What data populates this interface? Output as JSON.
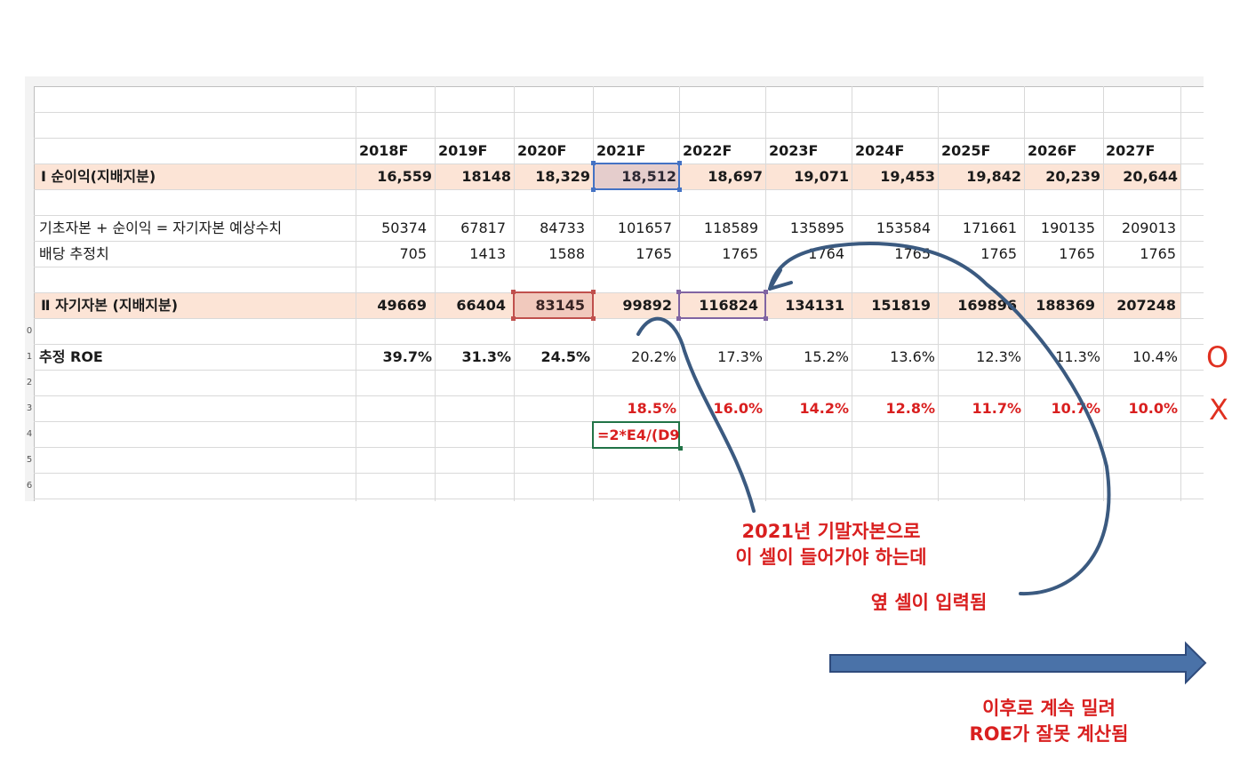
{
  "sheet": {
    "years": [
      "2018F",
      "2019F",
      "2020F",
      "2021F",
      "2022F",
      "2023F",
      "2024F",
      "2025F",
      "2026F",
      "2027F"
    ],
    "rows": {
      "net_income": {
        "label": "Ⅰ 순이익(지배지분)",
        "values": [
          "16,559",
          "18148",
          "18,329",
          "18,512",
          "18,697",
          "19,071",
          "19,453",
          "19,842",
          "20,239",
          "20,644"
        ]
      },
      "equity_estimate": {
        "label": "기초자본 + 순이익 = 자기자본 예상수치",
        "values": [
          "50374",
          "67817",
          "84733",
          "101657",
          "118589",
          "135895",
          "153584",
          "171661",
          "190135",
          "209013"
        ]
      },
      "dividend": {
        "label": "배당 추정치",
        "values": [
          "705",
          "1413",
          "1588",
          "1765",
          "1765",
          "1764",
          "1765",
          "1765",
          "1765",
          "1765"
        ]
      },
      "equity": {
        "label": "Ⅱ 자기자본 (지배지분)",
        "values": [
          "49669",
          "66404",
          "83145",
          "99892",
          "116824",
          "134131",
          "151819",
          "169896",
          "188369",
          "207248"
        ]
      },
      "roe": {
        "label": "추정 ROE",
        "values": [
          "39.7%",
          "31.3%",
          "24.5%",
          "20.2%",
          "17.3%",
          "15.2%",
          "13.6%",
          "12.3%",
          "11.3%",
          "10.4%"
        ]
      },
      "roe_wrong": {
        "values": [
          "",
          "",
          "",
          "18.5%",
          "16.0%",
          "14.2%",
          "12.8%",
          "11.7%",
          "10.7%",
          "10.0%"
        ]
      },
      "formula": "=2*E4/(D9"
    },
    "row_numbers": [
      "0",
      "1",
      "2",
      "3",
      "4",
      "5",
      "6"
    ]
  },
  "annotations": {
    "note1_line1": "2021년 기말자본으로",
    "note1_line2": "이 셀이 들어가야 하는데",
    "note2": "옆 셀이 입력됨",
    "note3_line1": "이후로 계속 밀려",
    "note3_line2": "ROE가 잘못 계산됨",
    "mark_o": "O",
    "mark_x": "X"
  },
  "colors": {
    "band": "#fce4d6",
    "annotation_red": "#d91f1f",
    "curve_blue": "#3b5a80",
    "arrow_blue": "#4a72a8",
    "active_cell_green": "#217346",
    "ref_cell_red": "#c0504d",
    "ref_cell_purple": "#8064a2",
    "ref_cell_blue": "#4472c4"
  }
}
